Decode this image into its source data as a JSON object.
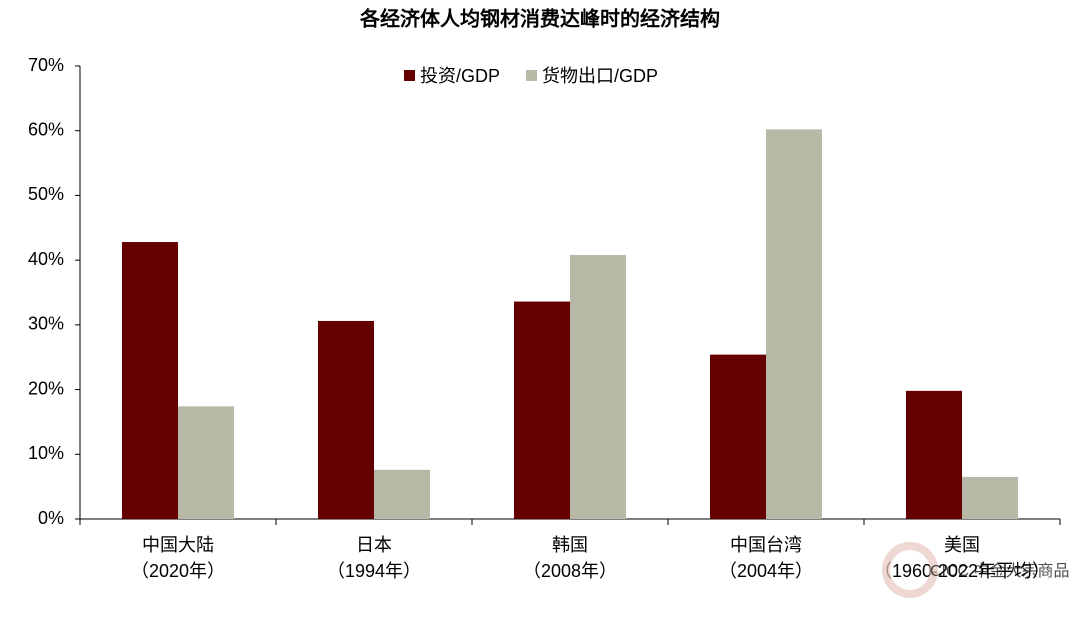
{
  "chart_data": {
    "type": "bar",
    "title": "各经济体人均钢材消费达峰时的经济结构",
    "categories": [
      [
        "中国大陆",
        "（2020年）"
      ],
      [
        "日本",
        "（1994年）"
      ],
      [
        "韩国",
        "（2008年）"
      ],
      [
        "中国台湾",
        "（2004年）"
      ],
      [
        "美国",
        "（1960-2022年平均）"
      ]
    ],
    "series": [
      {
        "name": "投资/GDP",
        "color": "#660000",
        "values": [
          42.8,
          30.6,
          33.6,
          25.4,
          19.8
        ]
      },
      {
        "name": "货物出口/GDP",
        "color": "#b8b8a6",
        "values": [
          17.4,
          7.6,
          40.8,
          60.2,
          6.5
        ]
      }
    ],
    "ylim": [
      0,
      70
    ],
    "yticks": [
      {
        "value": 0,
        "label": "0%"
      },
      {
        "value": 10,
        "label": "10%"
      },
      {
        "value": 20,
        "label": "20%"
      },
      {
        "value": 30,
        "label": "30%"
      },
      {
        "value": 40,
        "label": "40%"
      },
      {
        "value": 50,
        "label": "50%"
      },
      {
        "value": 60,
        "label": "60%"
      },
      {
        "value": 70,
        "label": "70%"
      }
    ],
    "grid": false,
    "legend": "top",
    "watermark": "CICC 中金大宗商品"
  }
}
